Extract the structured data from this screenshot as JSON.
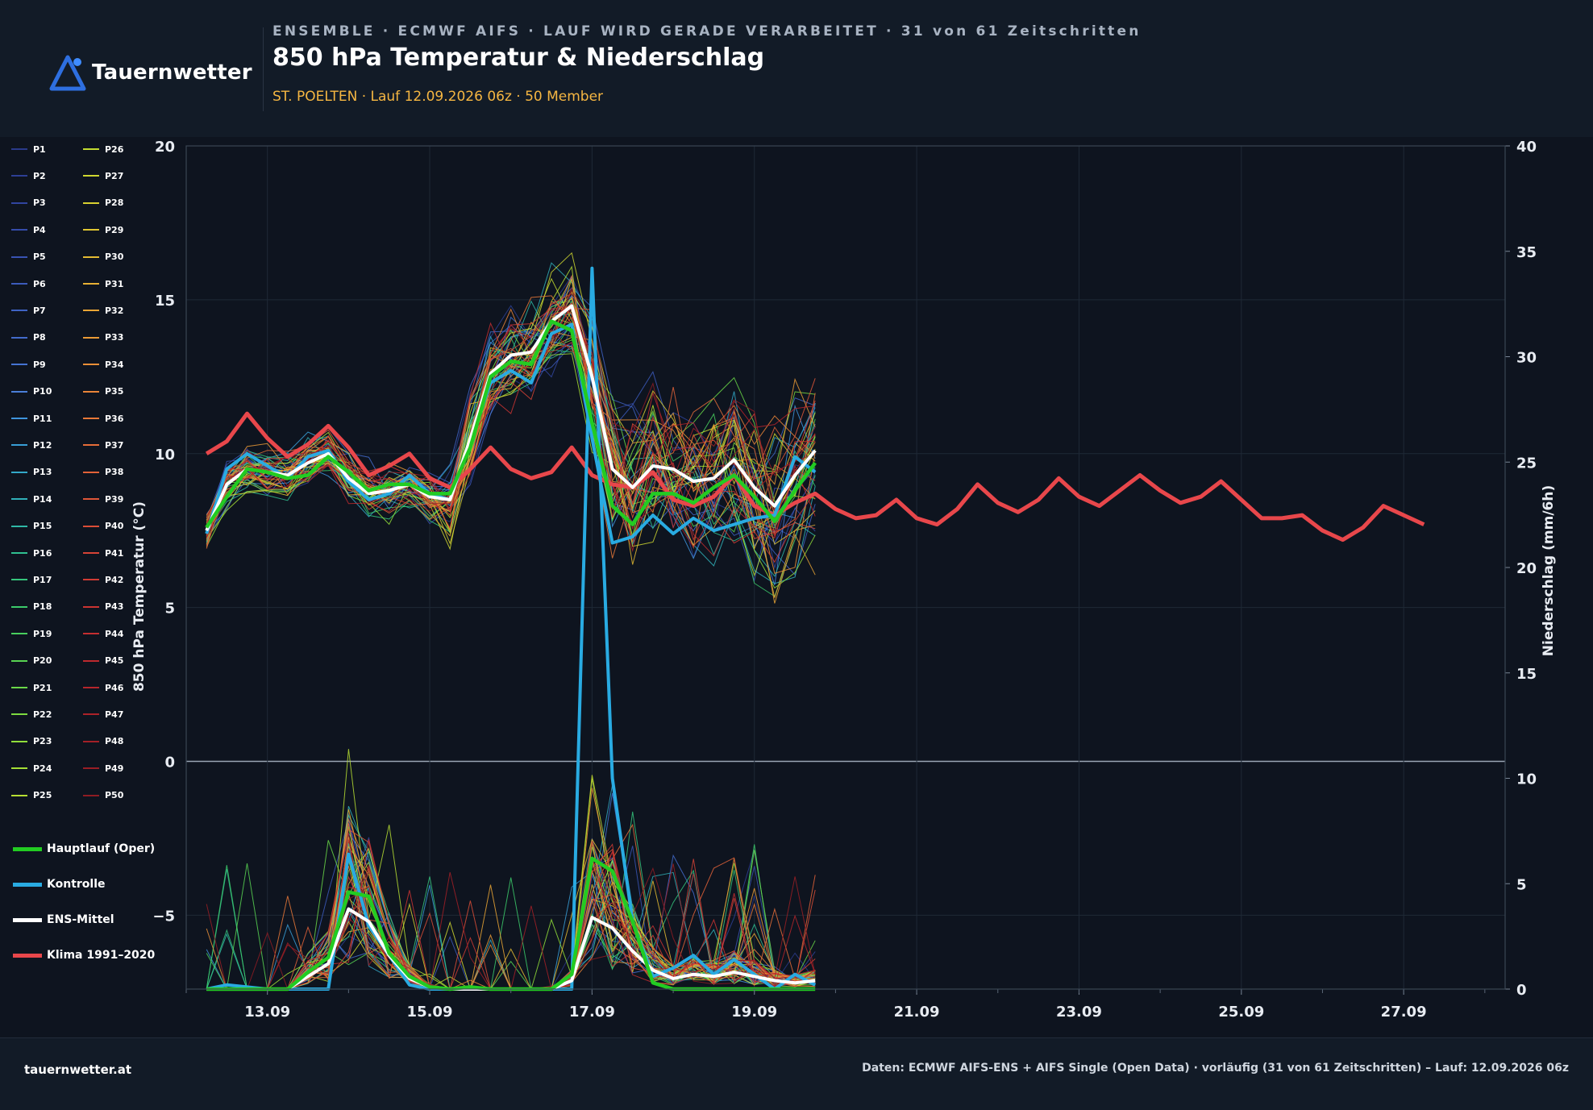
{
  "header": {
    "logo_text": "Tauernwetter",
    "kicker": "ENSEMBLE · ECMWF AIFS · LAUF WIRD GERADE VERARBEITET · 31 von 61 Zeitschritten",
    "title": "850 hPa Temperatur & Niederschlag",
    "subtitle": "ST. POELTEN · Lauf 12.09.2026 06z · 50 Member"
  },
  "footer": {
    "site": "tauernwetter.at",
    "source": "Daten: ECMWF AIFS-ENS + AIFS Single (Open Data) · vorläufig (31 von 61 Zeitschritten) – Lauf: 12.09.2026 06z"
  },
  "colors": {
    "background": "#0e141f",
    "panel": "#121b27",
    "accent": "#f5b642",
    "oper": "#22cc22",
    "control": "#29abe2",
    "mean": "#ffffff",
    "climate": "#e8474b"
  },
  "chart_data": {
    "type": "line",
    "ylabel": "850 hPa Temperatur (°C)",
    "y2label": "Niederschlag (mm/6h)",
    "ylim": [
      -7.4,
      20
    ],
    "y2lim": [
      0,
      40
    ],
    "yticks": [
      -5,
      0,
      5,
      10,
      15,
      20
    ],
    "y2ticks": [
      0,
      5,
      10,
      15,
      20,
      25,
      30,
      35,
      40
    ],
    "xaxis_start": "2026-09-12 00:00",
    "xaxis_end": "2026-09-28 06:00",
    "xtick_labels": [
      "13.09",
      "15.09",
      "17.09",
      "19.09",
      "21.09",
      "23.09",
      "25.09",
      "27.09"
    ],
    "xtick_dates": [
      "2026-09-13 00:00",
      "2026-09-15 00:00",
      "2026-09-17 00:00",
      "2026-09-19 00:00",
      "2026-09-21 00:00",
      "2026-09-23 00:00",
      "2026-09-25 00:00",
      "2026-09-27 00:00"
    ],
    "grid": true,
    "legend_position": "left",
    "members": [
      "P1",
      "P2",
      "P3",
      "P4",
      "P5",
      "P6",
      "P7",
      "P8",
      "P9",
      "P10",
      "P11",
      "P12",
      "P13",
      "P14",
      "P15",
      "P16",
      "P17",
      "P18",
      "P19",
      "P20",
      "P21",
      "P22",
      "P23",
      "P24",
      "P25",
      "P26",
      "P27",
      "P28",
      "P29",
      "P30",
      "P31",
      "P32",
      "P33",
      "P34",
      "P35",
      "P36",
      "P37",
      "P38",
      "P39",
      "P40",
      "P41",
      "P42",
      "P43",
      "P44",
      "P45",
      "P46",
      "P47",
      "P48",
      "P49",
      "P50"
    ],
    "member_colors": [
      "#2a3a8a",
      "#2d3f95",
      "#3145a0",
      "#354caa",
      "#3953b3",
      "#3c5bbc",
      "#3f63c4",
      "#426bcb",
      "#4574d2",
      "#4a7ed8",
      "#3f94dc",
      "#389ed6",
      "#33a8c8",
      "#30b0b8",
      "#2fb8a6",
      "#30c090",
      "#35c67c",
      "#3ccb6b",
      "#48cf5e",
      "#58d352",
      "#6ad748",
      "#7ddb40",
      "#90dd3a",
      "#a4de35",
      "#b6de32",
      "#c4dc30",
      "#cfd730",
      "#d8d030",
      "#dfc632",
      "#e4bb33",
      "#e7b034",
      "#e9a535",
      "#ea9a36",
      "#ea8f37",
      "#e98438",
      "#e77838",
      "#e56d38",
      "#e26238",
      "#df5738",
      "#db4d37",
      "#d64336",
      "#d13b34",
      "#cb3432",
      "#c42e30",
      "#bd292e",
      "#b5252c",
      "#ac2229",
      "#a32027",
      "#991e25",
      "#8f1c23"
    ],
    "legend_labels": {
      "oper": "Hauptlauf (Oper)",
      "control": "Kontrolle",
      "mean": "ENS-Mittel",
      "climate": "Klima 1991–2020"
    },
    "step_hours": 6,
    "start_time": "2026-09-12 06:00",
    "oper_temp": [
      7.6,
      8.6,
      9.5,
      9.4,
      9.2,
      9.3,
      9.9,
      9.4,
      8.8,
      9.0,
      9.0,
      8.7,
      8.7,
      10.2,
      12.5,
      13.0,
      12.9,
      14.3,
      14.0,
      11.0,
      8.3,
      7.7,
      8.7,
      8.7,
      8.4,
      8.9,
      9.3,
      8.6,
      7.8,
      8.8,
      9.7
    ],
    "control_temp": [
      7.4,
      9.5,
      10.0,
      9.6,
      9.2,
      9.9,
      10.1,
      9.1,
      8.5,
      8.7,
      9.3,
      8.7,
      8.5,
      10.4,
      12.3,
      12.7,
      12.3,
      13.9,
      14.2,
      10.5,
      7.1,
      7.3,
      8.0,
      7.4,
      7.9,
      7.5,
      7.7,
      7.9,
      8.0,
      9.9,
      9.4
    ],
    "mean_temp": [
      7.5,
      9.0,
      9.5,
      9.4,
      9.3,
      9.7,
      10.0,
      9.2,
      8.7,
      8.8,
      9.0,
      8.6,
      8.5,
      10.5,
      12.6,
      13.2,
      13.3,
      14.3,
      14.8,
      12.5,
      9.5,
      8.9,
      9.6,
      9.5,
      9.1,
      9.2,
      9.8,
      8.9,
      8.3,
      9.3,
      10.1
    ],
    "climate_temp": [
      10.0,
      10.4,
      11.3,
      10.5,
      9.9,
      10.3,
      10.9,
      10.2,
      9.3,
      9.6,
      10.0,
      9.2,
      8.9,
      9.5,
      10.2,
      9.5,
      9.2,
      9.4,
      10.2,
      9.3,
      9.0,
      8.9,
      9.4,
      8.5,
      8.3,
      8.6,
      9.3,
      8.3,
      8.0,
      8.4,
      8.7,
      8.2,
      7.9,
      8.0,
      8.5,
      7.9,
      7.7,
      8.2,
      9.0,
      8.4,
      8.1,
      8.5,
      9.2,
      8.6,
      8.3,
      8.8,
      9.3,
      8.8,
      8.4,
      8.6,
      9.1,
      8.5,
      7.9,
      7.9,
      8.0,
      7.5,
      7.2,
      7.6,
      8.3,
      8.0,
      7.7
    ],
    "oper_precip": [
      0.0,
      0.0,
      0.0,
      0.0,
      0.0,
      0.8,
      1.5,
      4.6,
      4.4,
      1.7,
      0.6,
      0.1,
      0.0,
      0.1,
      0.0,
      0.0,
      0.0,
      0.0,
      0.7,
      6.2,
      5.6,
      3.2,
      0.3,
      0.0,
      0.0,
      0.0,
      0.0,
      0.0,
      0.0,
      0.0,
      0.0
    ],
    "control_precip": [
      0.0,
      0.2,
      0.1,
      0.0,
      0.0,
      0.0,
      0.0,
      6.4,
      3.0,
      1.6,
      0.2,
      0.0,
      0.0,
      0.0,
      0.0,
      0.0,
      0.0,
      0.0,
      0.0,
      34.2,
      10.0,
      3.2,
      0.6,
      1.0,
      1.6,
      0.7,
      1.4,
      0.7,
      0.0,
      0.7,
      0.2
    ],
    "mean_precip": [
      0.0,
      0.0,
      0.0,
      0.0,
      0.0,
      0.6,
      1.2,
      3.8,
      3.2,
      1.6,
      0.5,
      0.1,
      0.0,
      0.0,
      0.0,
      0.0,
      0.0,
      0.0,
      0.4,
      3.4,
      2.9,
      1.8,
      0.9,
      0.5,
      0.7,
      0.6,
      0.8,
      0.6,
      0.4,
      0.3,
      0.4
    ]
  }
}
